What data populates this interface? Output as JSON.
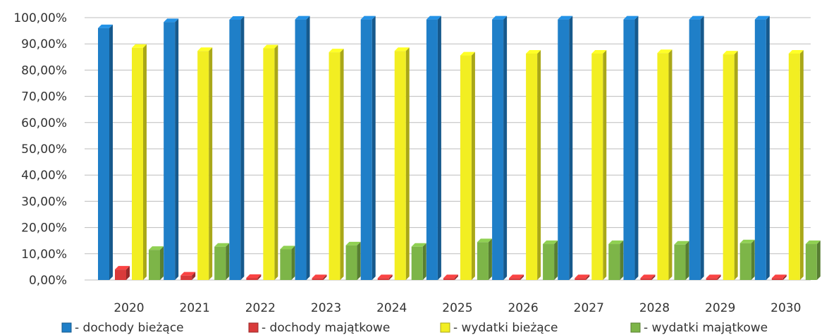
{
  "chart_data": {
    "type": "bar",
    "categories": [
      "2020",
      "2021",
      "2022",
      "2023",
      "2024",
      "2025",
      "2026",
      "2027",
      "2028",
      "2029",
      "2030"
    ],
    "series": [
      {
        "name": "- dochody bieżące",
        "color": "#1f7fc8",
        "values": [
          96.0,
          98.3,
          99.2,
          99.3,
          99.3,
          99.3,
          99.3,
          99.3,
          99.3,
          99.3,
          99.3
        ]
      },
      {
        "name": "- dochody majątkowe",
        "color": "#d93a3a",
        "values": [
          4.0,
          1.7,
          0.8,
          0.7,
          0.7,
          0.7,
          0.7,
          0.7,
          0.7,
          0.7,
          0.7
        ]
      },
      {
        "name": "- wydatki bieżące",
        "color": "#f2ee22",
        "values": [
          88.5,
          87.3,
          88.3,
          86.8,
          87.3,
          85.6,
          86.3,
          86.3,
          86.5,
          86.0,
          86.3
        ]
      },
      {
        "name": "- wydatki majątkowe",
        "color": "#7db548",
        "values": [
          11.5,
          12.7,
          11.7,
          13.2,
          12.7,
          14.4,
          13.7,
          13.7,
          13.5,
          14.0,
          13.7
        ]
      }
    ],
    "yticks": [
      "0,00%",
      "10,00%",
      "20,00%",
      "30,00%",
      "40,00%",
      "50,00%",
      "60,00%",
      "70,00%",
      "80,00%",
      "90,00%",
      "100,00%"
    ],
    "ylim": [
      0,
      100
    ],
    "legend_position": "bottom",
    "grid": true
  }
}
